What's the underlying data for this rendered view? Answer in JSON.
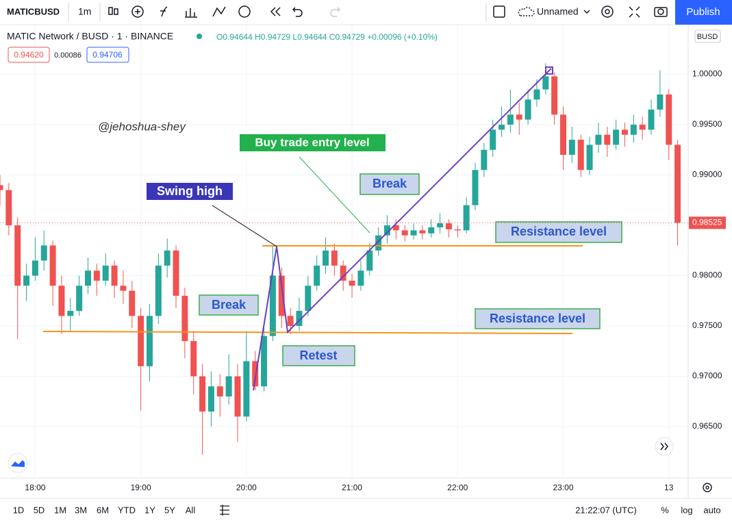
{
  "toolbar": {
    "symbol": "MATICBUSD",
    "interval": "1m",
    "layout_name": "Unnamed",
    "publish": "Publish"
  },
  "legend": {
    "title": "MATIC Network / BUSD · 1 · BINANCE",
    "ohlc_text": "O0.94644 H0.94729 L0.94644 C0.94729 +0.00096 (+0.10%)",
    "bid": "0.94620",
    "spread": "0.00086",
    "ask": "0.94706"
  },
  "currency": "BUSD",
  "watermark": "@jehoshua-shey",
  "annotations": {
    "buy_entry": "Buy trade entry level",
    "swing_high": "Swing high",
    "break_upper": "Break",
    "break_lower": "Break",
    "retest": "Retest",
    "resistance_upper": "Resistance level",
    "resistance_lower": "Resistance level"
  },
  "chart_data": {
    "type": "candlestick",
    "up_color": "#26a69a",
    "down_color": "#ef5350",
    "grid": true,
    "x": [
      "17:40",
      "17:45",
      "17:50",
      "17:55",
      "18:00",
      "18:05",
      "18:10",
      "18:15",
      "18:20",
      "18:25",
      "18:30",
      "18:35",
      "18:40",
      "18:45",
      "18:50",
      "18:55",
      "19:00",
      "19:05",
      "19:10",
      "19:15",
      "19:20",
      "19:25",
      "19:30",
      "19:35",
      "19:40",
      "19:45",
      "19:50",
      "19:55",
      "20:00",
      "20:05",
      "20:10",
      "20:15",
      "20:20",
      "20:25",
      "20:30",
      "20:35",
      "20:40",
      "20:45",
      "20:50",
      "20:55",
      "21:00",
      "21:05",
      "21:10",
      "21:15",
      "21:20",
      "21:25",
      "21:30",
      "21:35",
      "21:40",
      "21:45",
      "21:50",
      "21:55",
      "22:00",
      "22:05",
      "22:10",
      "22:15",
      "22:20",
      "22:25",
      "22:30",
      "22:35",
      "22:40",
      "22:45",
      "22:50",
      "22:55",
      "23:00",
      "23:05",
      "23:10",
      "23:15",
      "23:20",
      "23:25",
      "23:30",
      "23:35",
      "23:40",
      "23:45",
      "23:50",
      "23:55",
      "00:00",
      "00:05"
    ],
    "ohlc": [
      [
        0.989,
        0.99,
        0.987,
        0.9885
      ],
      [
        0.9885,
        0.9892,
        0.984,
        0.985
      ],
      [
        0.985,
        0.9858,
        0.9737,
        0.979
      ],
      [
        0.979,
        0.9812,
        0.9775,
        0.98
      ],
      [
        0.98,
        0.9838,
        0.9795,
        0.9815
      ],
      [
        0.9815,
        0.9845,
        0.9805,
        0.983
      ],
      [
        0.983,
        0.9835,
        0.977,
        0.979
      ],
      [
        0.979,
        0.98,
        0.9742,
        0.976
      ],
      [
        0.976,
        0.9778,
        0.9745,
        0.9765
      ],
      [
        0.9765,
        0.98,
        0.976,
        0.979
      ],
      [
        0.979,
        0.9818,
        0.9782,
        0.9805
      ],
      [
        0.9805,
        0.9812,
        0.978,
        0.9795
      ],
      [
        0.9795,
        0.9822,
        0.979,
        0.981
      ],
      [
        0.981,
        0.9815,
        0.9778,
        0.979
      ],
      [
        0.979,
        0.9805,
        0.9772,
        0.9785
      ],
      [
        0.9785,
        0.9795,
        0.9748,
        0.976
      ],
      [
        0.976,
        0.9768,
        0.9666,
        0.971
      ],
      [
        0.971,
        0.9772,
        0.9695,
        0.976
      ],
      [
        0.976,
        0.9822,
        0.9752,
        0.981
      ],
      [
        0.981,
        0.9837,
        0.9798,
        0.9825
      ],
      [
        0.9825,
        0.983,
        0.9768,
        0.978
      ],
      [
        0.978,
        0.9788,
        0.9718,
        0.9735
      ],
      [
        0.9735,
        0.9745,
        0.9682,
        0.97
      ],
      [
        0.97,
        0.9712,
        0.9622,
        0.9665
      ],
      [
        0.9665,
        0.9705,
        0.965,
        0.969
      ],
      [
        0.969,
        0.9702,
        0.966,
        0.968
      ],
      [
        0.968,
        0.9722,
        0.9672,
        0.97
      ],
      [
        0.97,
        0.9712,
        0.9635,
        0.966
      ],
      [
        0.966,
        0.9745,
        0.9655,
        0.9715
      ],
      [
        0.9715,
        0.9725,
        0.9686,
        0.969
      ],
      [
        0.969,
        0.9752,
        0.9685,
        0.974
      ],
      [
        0.974,
        0.983,
        0.9735,
        0.98
      ],
      [
        0.98,
        0.9808,
        0.9748,
        0.976
      ],
      [
        0.976,
        0.9768,
        0.9742,
        0.975
      ],
      [
        0.975,
        0.9778,
        0.9745,
        0.9765
      ],
      [
        0.9765,
        0.98,
        0.976,
        0.979
      ],
      [
        0.979,
        0.982,
        0.9785,
        0.981
      ],
      [
        0.981,
        0.9838,
        0.9802,
        0.9825
      ],
      [
        0.9825,
        0.9832,
        0.98,
        0.981
      ],
      [
        0.981,
        0.9815,
        0.9785,
        0.9795
      ],
      [
        0.9795,
        0.9802,
        0.9778,
        0.979
      ],
      [
        0.979,
        0.9815,
        0.9785,
        0.9805
      ],
      [
        0.9805,
        0.9832,
        0.98,
        0.9825
      ],
      [
        0.9825,
        0.9848,
        0.982,
        0.984
      ],
      [
        0.984,
        0.986,
        0.9832,
        0.985
      ],
      [
        0.985,
        0.9856,
        0.9836,
        0.9845
      ],
      [
        0.9845,
        0.985,
        0.9834,
        0.984
      ],
      [
        0.984,
        0.9852,
        0.9836,
        0.9845
      ],
      [
        0.9845,
        0.985,
        0.9836,
        0.9842
      ],
      [
        0.9842,
        0.9856,
        0.9838,
        0.9848
      ],
      [
        0.9848,
        0.9862,
        0.9842,
        0.9852
      ],
      [
        0.9852,
        0.9856,
        0.9838,
        0.9846
      ],
      [
        0.9846,
        0.985,
        0.9838,
        0.9845
      ],
      [
        0.9845,
        0.9878,
        0.9842,
        0.987
      ],
      [
        0.987,
        0.9912,
        0.9865,
        0.9905
      ],
      [
        0.9905,
        0.9932,
        0.9898,
        0.9925
      ],
      [
        0.9925,
        0.9955,
        0.9918,
        0.9945
      ],
      [
        0.9945,
        0.9968,
        0.9938,
        0.995
      ],
      [
        0.995,
        0.9985,
        0.9942,
        0.996
      ],
      [
        0.996,
        0.9972,
        0.994,
        0.9955
      ],
      [
        0.9955,
        0.9985,
        0.995,
        0.9975
      ],
      [
        0.9975,
        0.9995,
        0.9968,
        0.9985
      ],
      [
        0.9985,
        1.0011,
        0.998,
        0.9998
      ],
      [
        0.9998,
        1.0002,
        0.995,
        0.996
      ],
      [
        0.996,
        0.9968,
        0.9905,
        0.992
      ],
      [
        0.992,
        0.9948,
        0.9912,
        0.9935
      ],
      [
        0.9935,
        0.994,
        0.9898,
        0.9905
      ],
      [
        0.9905,
        0.9938,
        0.99,
        0.993
      ],
      [
        0.993,
        0.9952,
        0.9922,
        0.994
      ],
      [
        0.994,
        0.9948,
        0.9918,
        0.993
      ],
      [
        0.993,
        0.9955,
        0.9925,
        0.9945
      ],
      [
        0.9945,
        0.9952,
        0.9928,
        0.994
      ],
      [
        0.994,
        0.996,
        0.9932,
        0.995
      ],
      [
        0.995,
        0.9958,
        0.9935,
        0.9945
      ],
      [
        0.9945,
        0.9975,
        0.994,
        0.9965
      ],
      [
        0.9965,
        1.0004,
        0.9958,
        0.998
      ],
      [
        0.998,
        0.9985,
        0.9915,
        0.993
      ],
      [
        0.993,
        0.9935,
        0.983,
        0.98525
      ]
    ],
    "last_label": "0.98525",
    "xlim": [
      "17:40",
      "00:11"
    ],
    "xticks": [
      "18:00",
      "19:00",
      "20:00",
      "21:00",
      "22:00",
      "23:00",
      {
        "value": "00:00",
        "label": "13"
      }
    ],
    "ylim": [
      0.9599,
      1.0048
    ],
    "yticks": [
      {
        "value": 0.965,
        "label": "0.96500"
      },
      {
        "value": 0.97,
        "label": "0.97000"
      },
      {
        "value": 0.975,
        "label": "0.97500"
      },
      {
        "value": 0.98,
        "label": "0.98000"
      },
      {
        "value": 0.985,
        "label": "0.98500"
      },
      {
        "value": 0.99,
        "label": "0.99000"
      },
      {
        "value": 0.995,
        "label": "0.99500"
      },
      {
        "value": 1.0,
        "label": "1.00000"
      }
    ]
  },
  "bottom_bar": {
    "ranges": [
      "1D",
      "5D",
      "1M",
      "3M",
      "6M",
      "YTD",
      "1Y",
      "5Y",
      "All"
    ],
    "clock": "21:22:07 (UTC)",
    "percent": "%",
    "log": "log",
    "auto": "auto"
  }
}
